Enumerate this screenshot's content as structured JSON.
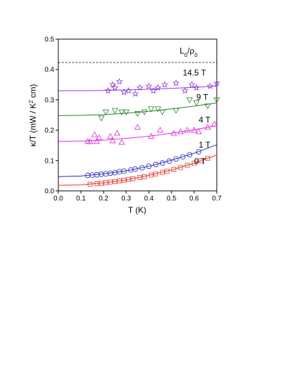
{
  "chart_data": {
    "type": "scatter",
    "xlabel": "T (K)",
    "ylabel_parts": [
      "κ/T (mW / K",
      "2",
      " cm)"
    ],
    "xlim": [
      0,
      0.7
    ],
    "ylim": [
      0,
      0.5
    ],
    "xticks": [
      {
        "value": 0,
        "label": "0.0"
      },
      0.1,
      0.2,
      0.3,
      0.4,
      0.5,
      0.6,
      0.7
    ],
    "yticks": [
      {
        "value": 0,
        "label": "0.0"
      },
      0.1,
      0.2,
      0.3,
      0.4,
      0.5
    ],
    "reference_line": {
      "value": 0.423,
      "label_parts": [
        "L",
        "0",
        "/ρ",
        "0"
      ]
    },
    "fit_x": [
      0,
      0.1,
      0.2,
      0.3,
      0.4,
      0.5,
      0.6,
      0.7
    ],
    "series": [
      {
        "name": "0 T",
        "color": "#e8312a",
        "marker": "square",
        "x": [
          0.14,
          0.17,
          0.19,
          0.21,
          0.23,
          0.25,
          0.27,
          0.29,
          0.31,
          0.33,
          0.36,
          0.38,
          0.41,
          0.43,
          0.46,
          0.48,
          0.51,
          0.54,
          0.57,
          0.6,
          0.63,
          0.66
        ],
        "values": [
          0.022,
          0.024,
          0.025,
          0.027,
          0.029,
          0.031,
          0.033,
          0.035,
          0.038,
          0.04,
          0.044,
          0.047,
          0.052,
          0.056,
          0.061,
          0.065,
          0.071,
          0.077,
          0.084,
          0.091,
          0.099,
          0.107
        ],
        "fit_values": [
          0.018,
          0.02,
          0.026,
          0.036,
          0.051,
          0.069,
          0.091,
          0.118
        ]
      },
      {
        "name": "1 T",
        "color": "#2020c0",
        "marker": "circle",
        "x": [
          0.13,
          0.15,
          0.17,
          0.19,
          0.21,
          0.23,
          0.25,
          0.27,
          0.29,
          0.32,
          0.34,
          0.37,
          0.4,
          0.43,
          0.46,
          0.49,
          0.52,
          0.55,
          0.58,
          0.62
        ],
        "values": [
          0.051,
          0.052,
          0.053,
          0.055,
          0.056,
          0.058,
          0.06,
          0.063,
          0.065,
          0.069,
          0.072,
          0.076,
          0.081,
          0.087,
          0.092,
          0.098,
          0.105,
          0.112,
          0.119,
          0.129
        ],
        "fit_values": [
          0.047,
          0.049,
          0.056,
          0.066,
          0.081,
          0.101,
          0.124,
          0.152
        ]
      },
      {
        "name": "4 T",
        "color": "#e020e0",
        "marker": "triangle-up",
        "x": [
          0.13,
          0.14,
          0.16,
          0.17,
          0.18,
          0.23,
          0.24,
          0.26,
          0.28,
          0.35,
          0.41,
          0.45,
          0.51,
          0.54,
          0.57,
          0.6,
          0.62,
          0.66,
          0.69
        ],
        "values": [
          0.163,
          0.162,
          0.185,
          0.163,
          0.175,
          0.18,
          0.165,
          0.19,
          0.16,
          0.21,
          0.18,
          0.2,
          0.19,
          0.195,
          0.2,
          0.2,
          0.195,
          0.21,
          0.22
        ],
        "fit_values": [
          0.163,
          0.164,
          0.167,
          0.173,
          0.18,
          0.19,
          0.201,
          0.215
        ]
      },
      {
        "name": "9 T",
        "color": "#208020",
        "marker": "triangle-down",
        "x": [
          0.19,
          0.21,
          0.25,
          0.28,
          0.3,
          0.35,
          0.38,
          0.41,
          0.44,
          0.46,
          0.52,
          0.58,
          0.61,
          0.66,
          0.7
        ],
        "values": [
          0.24,
          0.26,
          0.265,
          0.26,
          0.26,
          0.255,
          0.26,
          0.27,
          0.27,
          0.26,
          0.265,
          0.3,
          0.29,
          0.28,
          0.3
        ],
        "fit_values": [
          0.248,
          0.249,
          0.251,
          0.256,
          0.262,
          0.27,
          0.279,
          0.29
        ]
      },
      {
        "name": "14.5 T",
        "color": "#9030e0",
        "marker": "star",
        "x": [
          0.22,
          0.24,
          0.25,
          0.27,
          0.29,
          0.31,
          0.34,
          0.36,
          0.4,
          0.42,
          0.44,
          0.47,
          0.52,
          0.56,
          0.59,
          0.61,
          0.67,
          0.7
        ],
        "values": [
          0.33,
          0.35,
          0.34,
          0.36,
          0.325,
          0.33,
          0.32,
          0.34,
          0.345,
          0.33,
          0.34,
          0.35,
          0.355,
          0.33,
          0.35,
          0.34,
          0.345,
          0.355
        ],
        "fit_values": [
          0.33,
          0.33,
          0.331,
          0.333,
          0.335,
          0.338,
          0.341,
          0.345
        ]
      }
    ]
  }
}
